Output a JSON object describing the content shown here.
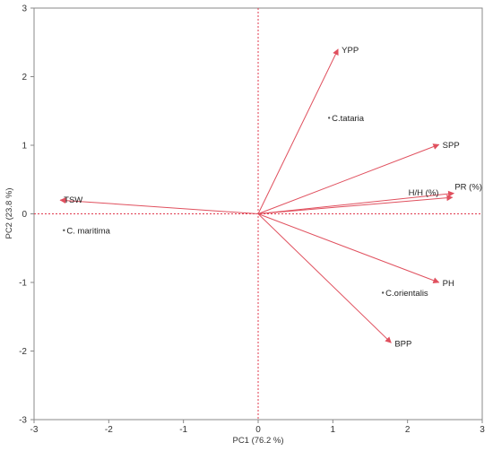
{
  "chart_data": {
    "type": "scatter",
    "subtype": "pca-biplot",
    "xlabel": "PC1  (76.2 %)",
    "ylabel": "PC2  (23.8 %)",
    "xlim": [
      -3,
      3
    ],
    "ylim": [
      -3,
      3
    ],
    "x_ticks": [
      -3,
      -2,
      -1,
      0,
      1,
      2,
      3
    ],
    "y_ticks": [
      -3,
      -2,
      -1,
      0,
      1,
      2,
      3
    ],
    "grid": false,
    "reference_lines": {
      "x": 0,
      "y": 0,
      "style": "dotted",
      "color": "#e03a4e"
    },
    "vectors": [
      {
        "label": "YPP",
        "x": 1.07,
        "y": 2.4
      },
      {
        "label": "SPP",
        "x": 2.42,
        "y": 1.01
      },
      {
        "label": "PR (%)",
        "x": 2.62,
        "y": 0.3
      },
      {
        "label": "H/H (%)",
        "x": 2.6,
        "y": 0.24
      },
      {
        "label": "TSW",
        "x": -2.65,
        "y": 0.2
      },
      {
        "label": "PH",
        "x": 2.42,
        "y": -1.0
      },
      {
        "label": "BPP",
        "x": 1.78,
        "y": -1.88
      }
    ],
    "observations": [
      {
        "label": "C.tataria",
        "x": 0.95,
        "y": 1.4
      },
      {
        "label": "C. maritima",
        "x": -2.6,
        "y": -0.24
      },
      {
        "label": "C.orientalis",
        "x": 1.67,
        "y": -1.15
      }
    ],
    "colors": {
      "vector": "#e0505e",
      "frame": "#888888",
      "point": "#555555"
    }
  }
}
